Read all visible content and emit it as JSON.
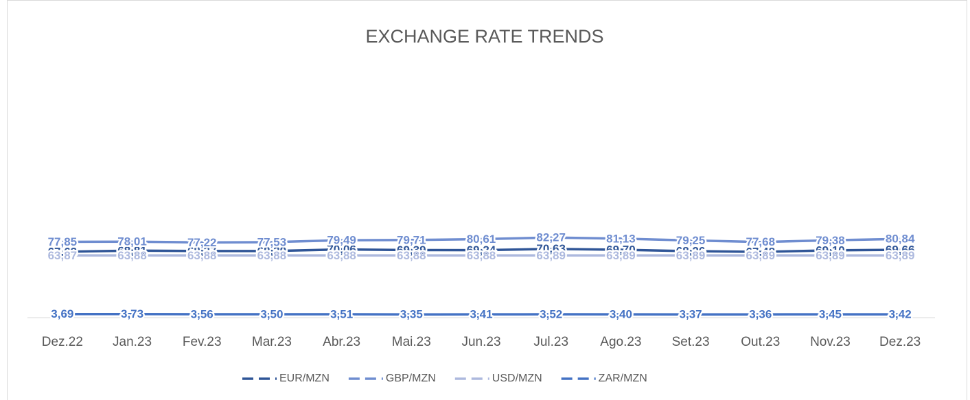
{
  "chart_data": {
    "type": "line",
    "title": "EXCHANGE RATE TRENDS",
    "categories": [
      "Dez.22",
      "Jan.23",
      "Fev.23",
      "Mar.23",
      "Abr.23",
      "Mai.23",
      "Jun.23",
      "Jul.23",
      "Ago.23",
      "Set.23",
      "Out.23",
      "Nov.23",
      "Dez.23"
    ],
    "ylim": [
      0,
      250
    ],
    "legend": "bottom",
    "series": [
      {
        "name": "EUR/MZN",
        "color": "#2f5597",
        "stacked": true,
        "values": [
          67.63,
          68.81,
          68.37,
          68.39,
          70.06,
          69.39,
          69.24,
          70.63,
          69.7,
          68.26,
          67.48,
          69.1,
          69.66
        ],
        "value_labels": [
          "67,63",
          "68,81",
          "68,37",
          "68,39",
          "70,06",
          "69,39",
          "69,24",
          "70,63",
          "69,70",
          "68,26",
          "67,48",
          "69,10",
          "69,66"
        ]
      },
      {
        "name": "GBP/MZN",
        "color": "#6f8dd0",
        "stacked": true,
        "values": [
          77.85,
          78.01,
          77.22,
          77.53,
          79.49,
          79.71,
          80.61,
          82.27,
          81.13,
          79.25,
          77.68,
          79.38,
          80.84
        ],
        "value_labels": [
          "77,85",
          "78,01",
          "77,22",
          "77,53",
          "79,49",
          "79,71",
          "80,61",
          "82,27",
          "81,13",
          "79,25",
          "77,68",
          "79,38",
          "80,84"
        ]
      },
      {
        "name": "USD/MZN",
        "color": "#adb9de",
        "stacked": true,
        "values": [
          63.87,
          63.88,
          63.88,
          63.88,
          63.88,
          63.88,
          63.88,
          63.89,
          63.89,
          63.89,
          63.89,
          63.89,
          63.89
        ],
        "value_labels": [
          "63,87",
          "63,88",
          "63,88",
          "63,88",
          "63,88",
          "63,88",
          "63,88",
          "63,89",
          "63,89",
          "63,89",
          "63,89",
          "63,89",
          "63,89"
        ]
      },
      {
        "name": "ZAR/MZN",
        "color": "#4472c4",
        "stacked": false,
        "values": [
          3.69,
          3.73,
          3.56,
          3.5,
          3.51,
          3.35,
          3.41,
          3.52,
          3.4,
          3.37,
          3.36,
          3.45,
          3.42
        ],
        "value_labels": [
          "3,69",
          "3,73",
          "3,56",
          "3,50",
          "3,51",
          "3,35",
          "3,41",
          "3,52",
          "3,40",
          "3,37",
          "3,36",
          "3,45",
          "3,42"
        ]
      }
    ]
  }
}
